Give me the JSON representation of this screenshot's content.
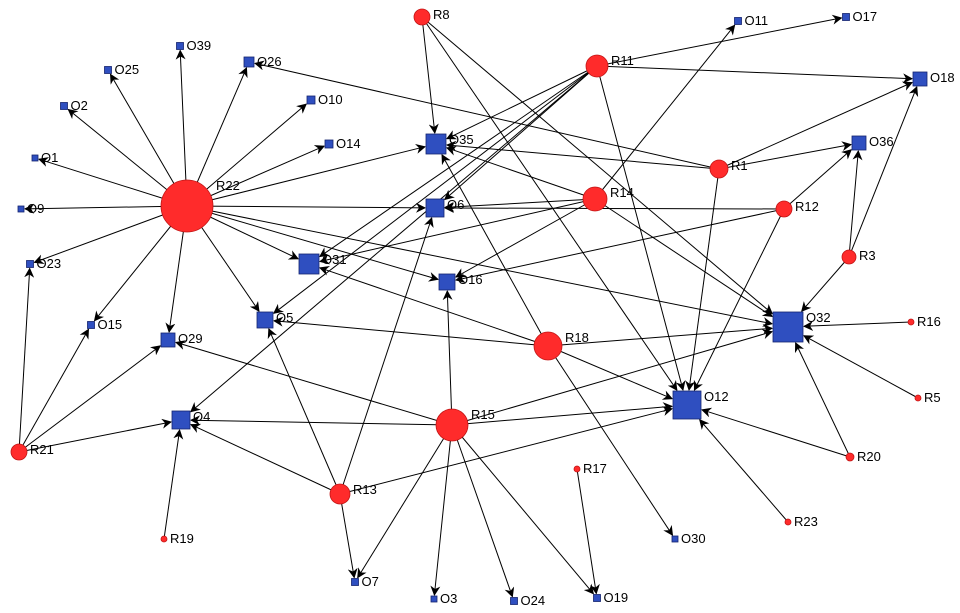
{
  "colors": {
    "r_node": "#ff2b2b",
    "r_node_stroke": "#c21515",
    "o_node": "#2f4fc0",
    "o_node_stroke": "#15236e",
    "edge": "#000000"
  },
  "nodes": {
    "R8": {
      "label": "R8",
      "type": "R"
    },
    "R11": {
      "label": "R11",
      "type": "R"
    },
    "R22": {
      "label": "R22",
      "type": "R"
    },
    "R1": {
      "label": "R1",
      "type": "R"
    },
    "R14": {
      "label": "R14",
      "type": "R"
    },
    "R12": {
      "label": "R12",
      "type": "R"
    },
    "R3": {
      "label": "R3",
      "type": "R"
    },
    "R16": {
      "label": "R16",
      "type": "R"
    },
    "R18": {
      "label": "R18",
      "type": "R"
    },
    "R5": {
      "label": "R5",
      "type": "R"
    },
    "R15": {
      "label": "R15",
      "type": "R"
    },
    "R20": {
      "label": "R20",
      "type": "R"
    },
    "R21": {
      "label": "R21",
      "type": "R"
    },
    "R17": {
      "label": "R17",
      "type": "R"
    },
    "R13": {
      "label": "R13",
      "type": "R"
    },
    "R23": {
      "label": "R23",
      "type": "R"
    },
    "R19": {
      "label": "R19",
      "type": "R"
    },
    "O11": {
      "label": "O11",
      "type": "O"
    },
    "O17": {
      "label": "O17",
      "type": "O"
    },
    "O39": {
      "label": "O39",
      "type": "O"
    },
    "O25": {
      "label": "O25",
      "type": "O"
    },
    "O26": {
      "label": "O26",
      "type": "O"
    },
    "O18": {
      "label": "O18",
      "type": "O"
    },
    "O2": {
      "label": "O2",
      "type": "O"
    },
    "O10": {
      "label": "O10",
      "type": "O"
    },
    "O35": {
      "label": "O35",
      "type": "O"
    },
    "O14": {
      "label": "O14",
      "type": "O"
    },
    "O36": {
      "label": "O36",
      "type": "O"
    },
    "O1": {
      "label": "O1",
      "type": "O"
    },
    "O6": {
      "label": "O6",
      "type": "O"
    },
    "O9": {
      "label": "O9",
      "type": "O"
    },
    "O31": {
      "label": "O31",
      "type": "O"
    },
    "O23": {
      "label": "O23",
      "type": "O"
    },
    "O16": {
      "label": "O16",
      "type": "O"
    },
    "O32": {
      "label": "O32",
      "type": "O"
    },
    "O5": {
      "label": "O5",
      "type": "O"
    },
    "O15": {
      "label": "O15",
      "type": "O"
    },
    "O29": {
      "label": "O29",
      "type": "O"
    },
    "O12": {
      "label": "O12",
      "type": "O"
    },
    "O4": {
      "label": "O4",
      "type": "O"
    },
    "O30": {
      "label": "O30",
      "type": "O"
    },
    "O7": {
      "label": "O7",
      "type": "O"
    },
    "O3": {
      "label": "O3",
      "type": "O"
    },
    "O24": {
      "label": "O24",
      "type": "O"
    },
    "O19": {
      "label": "O19",
      "type": "O"
    }
  },
  "edges": [
    [
      "R22",
      "O39"
    ],
    [
      "R22",
      "O25"
    ],
    [
      "R22",
      "O26"
    ],
    [
      "R22",
      "O2"
    ],
    [
      "R22",
      "O10"
    ],
    [
      "R22",
      "O14"
    ],
    [
      "R22",
      "O35"
    ],
    [
      "R22",
      "O1"
    ],
    [
      "R22",
      "O6"
    ],
    [
      "R22",
      "O9"
    ],
    [
      "R22",
      "O31"
    ],
    [
      "R22",
      "O23"
    ],
    [
      "R22",
      "O16"
    ],
    [
      "R22",
      "O5"
    ],
    [
      "R22",
      "O15"
    ],
    [
      "R22",
      "O29"
    ],
    [
      "R22",
      "O32"
    ],
    [
      "R8",
      "O35"
    ],
    [
      "R8",
      "O32"
    ],
    [
      "R8",
      "O12"
    ],
    [
      "R11",
      "O18"
    ],
    [
      "R11",
      "O35"
    ],
    [
      "R11",
      "O6"
    ],
    [
      "R11",
      "O31"
    ],
    [
      "R11",
      "O5"
    ],
    [
      "R11",
      "O4"
    ],
    [
      "R11",
      "O12"
    ],
    [
      "R1",
      "O35"
    ],
    [
      "R1",
      "O18"
    ],
    [
      "R1",
      "O36"
    ],
    [
      "R1",
      "O12"
    ],
    [
      "R1",
      "O26"
    ],
    [
      "R14",
      "O11"
    ],
    [
      "R14",
      "O35"
    ],
    [
      "R14",
      "O6"
    ],
    [
      "R14",
      "O31"
    ],
    [
      "R14",
      "O16"
    ],
    [
      "R14",
      "O32"
    ],
    [
      "R12",
      "O36"
    ],
    [
      "R12",
      "O6"
    ],
    [
      "R12",
      "O16"
    ],
    [
      "R12",
      "O12"
    ],
    [
      "R3",
      "O36"
    ],
    [
      "R3",
      "O18"
    ],
    [
      "R3",
      "O32"
    ],
    [
      "R16",
      "O32"
    ],
    [
      "R5",
      "O32"
    ],
    [
      "R20",
      "O32"
    ],
    [
      "R20",
      "O12"
    ],
    [
      "R23",
      "O12"
    ],
    [
      "R18",
      "O31"
    ],
    [
      "R18",
      "O5"
    ],
    [
      "R18",
      "O32"
    ],
    [
      "R18",
      "O12"
    ],
    [
      "R18",
      "O30"
    ],
    [
      "R18",
      "O35"
    ],
    [
      "R15",
      "O16"
    ],
    [
      "R15",
      "O4"
    ],
    [
      "R15",
      "O29"
    ],
    [
      "R15",
      "O32"
    ],
    [
      "R15",
      "O12"
    ],
    [
      "R15",
      "O7"
    ],
    [
      "R15",
      "O3"
    ],
    [
      "R15",
      "O24"
    ],
    [
      "R15",
      "O19"
    ],
    [
      "R13",
      "O6"
    ],
    [
      "R13",
      "O5"
    ],
    [
      "R13",
      "O4"
    ],
    [
      "R13",
      "O7"
    ],
    [
      "R13",
      "O12"
    ],
    [
      "R21",
      "O23"
    ],
    [
      "R21",
      "O15"
    ],
    [
      "R21",
      "O29"
    ],
    [
      "R21",
      "O4"
    ],
    [
      "R19",
      "O4"
    ],
    [
      "R17",
      "O19"
    ],
    [
      "R11",
      "O17"
    ]
  ]
}
